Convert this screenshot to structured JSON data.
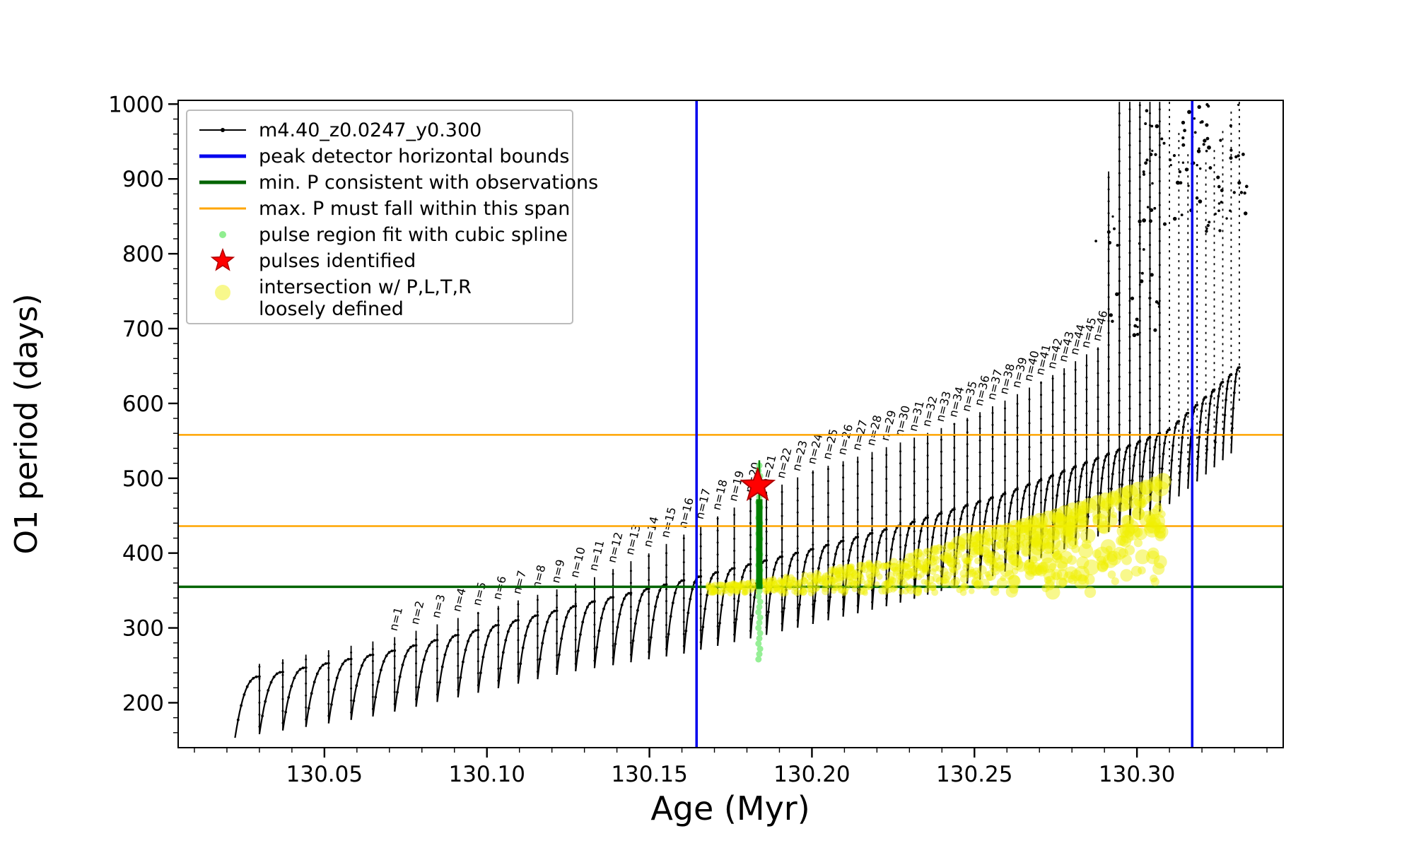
{
  "chart_data": {
    "type": "line",
    "title": "",
    "xlabel": "Age (Myr)",
    "ylabel": "O1 period (days)",
    "xlim": [
      130.005,
      130.345
    ],
    "ylim": [
      140,
      1005
    ],
    "x_major_ticks": [
      130.05,
      130.1,
      130.15,
      130.2,
      130.25,
      130.3
    ],
    "x_tick_labels": [
      "130.05",
      "130.10",
      "130.15",
      "130.20",
      "130.25",
      "130.30"
    ],
    "x_minor_step": 0.01,
    "y_major_ticks": [
      200,
      300,
      400,
      500,
      600,
      700,
      800,
      900,
      1000
    ],
    "y_minor_step": 20,
    "grid": false,
    "series_name": "m4.40_z0.0247_y0.300",
    "series_color": "#000000",
    "pulse_track": {
      "start_x": 130.0225,
      "spike_x": [
        130.03,
        130.0372,
        130.0443,
        130.0513,
        130.0582,
        130.0649,
        130.0716,
        130.0782,
        130.0847,
        130.0911,
        130.0973,
        130.1035,
        130.1096,
        130.1156,
        130.1215,
        130.1273,
        130.1331,
        130.1388,
        130.1443,
        130.1498,
        130.1552,
        130.1606,
        130.1658,
        130.171,
        130.1761,
        130.1811,
        130.186,
        130.1908,
        130.1956,
        130.2003,
        130.205,
        130.2096,
        130.2141,
        130.2185,
        130.2229,
        130.2272,
        130.2315,
        130.2356,
        130.2398,
        130.2438,
        130.2478,
        130.2517,
        130.2556,
        130.2594,
        130.2632,
        130.2669,
        130.2705,
        130.2741,
        130.2776,
        130.2811,
        130.2845,
        130.288,
        130.2913,
        130.2946,
        130.2978,
        130.3009,
        130.304,
        130.307,
        130.31,
        130.3129,
        130.3157,
        130.3185,
        130.3212,
        130.3238,
        130.3264,
        130.329,
        130.3315
      ],
      "labels": [
        "n=1",
        "n=2",
        "n=3",
        "n=4",
        "n=5",
        "n=6",
        "n=7",
        "n=8",
        "n=9",
        "n=10",
        "n=11",
        "n=12",
        "n=13",
        "n=14",
        "n=15",
        "n=16",
        "n=17",
        "n=18",
        "n=19",
        "n=20",
        "n=21",
        "n=22",
        "n=23",
        "n=24",
        "n=25",
        "n=26",
        "n=27",
        "n=28",
        "n=29",
        "n=30",
        "n=31",
        "n=32",
        "n=33",
        "n=34",
        "n=35",
        "n=36",
        "n=37",
        "n=38",
        "n=39",
        "n=40",
        "n=41",
        "n=42",
        "n=43",
        "n=44",
        "n=45",
        "n=46"
      ],
      "label_first_spike_index": 6,
      "dashed_spikes_from_index": 58,
      "plateau_anchors": [
        [
          130.03,
          235
        ],
        [
          130.072,
          270
        ],
        [
          130.1,
          300
        ],
        [
          130.13,
          332
        ],
        [
          130.165,
          368
        ],
        [
          130.2,
          405
        ],
        [
          130.23,
          440
        ],
        [
          130.26,
          480
        ],
        [
          130.29,
          530
        ],
        [
          130.31,
          565
        ],
        [
          130.332,
          650
        ]
      ],
      "trough_anchors": [
        [
          130.0225,
          148
        ],
        [
          130.072,
          182
        ],
        [
          130.1,
          210
        ],
        [
          130.13,
          240
        ],
        [
          130.165,
          265
        ],
        [
          130.2,
          300
        ],
        [
          130.23,
          332
        ],
        [
          130.26,
          370
        ],
        [
          130.29,
          420
        ],
        [
          130.31,
          455
        ],
        [
          130.332,
          535
        ]
      ],
      "spike_top_anchors": [
        [
          130.03,
          252
        ],
        [
          130.072,
          288
        ],
        [
          130.1,
          325
        ],
        [
          130.13,
          362
        ],
        [
          130.15,
          400
        ],
        [
          130.165,
          435
        ],
        [
          130.18,
          470
        ],
        [
          130.2,
          510
        ],
        [
          130.215,
          530
        ],
        [
          130.23,
          552
        ],
        [
          130.245,
          575
        ],
        [
          130.26,
          605
        ],
        [
          130.275,
          640
        ],
        [
          130.288,
          675
        ],
        [
          130.2913,
          910
        ],
        [
          130.2946,
          1003
        ],
        [
          130.31,
          1003
        ],
        [
          130.313,
          960
        ],
        [
          130.3185,
          905
        ],
        [
          130.324,
          940
        ],
        [
          130.329,
          990
        ],
        [
          130.3315,
          1003
        ]
      ]
    },
    "vlines": {
      "label": "peak detector horizontal bounds",
      "color": "#0000ee",
      "x": [
        130.1645,
        130.317
      ],
      "width": 3.5
    },
    "hline_min_p": {
      "label": "min. P consistent with observations",
      "color": "#006400",
      "y": 355,
      "width": 3.5
    },
    "hlines_max_p": {
      "label": "max. P must fall within this span",
      "color": "#ffa500",
      "y": [
        436,
        558
      ],
      "width": 2.5
    },
    "pulse_spline_points": {
      "label": "pulse region fit with cubic spline",
      "color": "#90ee90",
      "x": 130.1838,
      "y_min": 258,
      "y_max": 520,
      "step": 7,
      "radius": 4.5
    },
    "pulse_bar": {
      "color": "#008000",
      "x": 130.1838,
      "y_min": 352,
      "y_max": 472,
      "line_y_max": 524
    },
    "pulses": {
      "label": "pulses identified",
      "color": "#ff0000",
      "edge_color": "#b00000",
      "points": [
        [
          130.1833,
          490
        ]
      ],
      "outer_radius": 24
    },
    "intersection_band": {
      "label_line1": "intersection w/ P,L,T,R",
      "label_line2": "loosely defined",
      "color": "#f0f000",
      "x_min": 130.168,
      "x_max": 130.308,
      "y_base": 352,
      "y_top_end": 492,
      "count": 750,
      "blob_count": 26,
      "seed": 7
    },
    "noise_scatter": {
      "count": 90,
      "x_min": 130.3,
      "x_max": 130.334,
      "y_min": 830,
      "y_max": 1002,
      "seed": 11
    },
    "noise_scatter2": {
      "count": 25,
      "x_min": 130.287,
      "x_max": 130.307,
      "y_min": 690,
      "y_max": 850,
      "seed": 5
    }
  },
  "legend": {
    "items": [
      {
        "key": "series",
        "label": "m4.40_z0.0247_y0.300",
        "type": "line-dot",
        "color": "#000000"
      },
      {
        "key": "vlines",
        "label": "peak detector horizontal bounds",
        "type": "line",
        "color": "#0000ee",
        "width": 5
      },
      {
        "key": "minp",
        "label": "min. P consistent with observations",
        "type": "line",
        "color": "#006400",
        "width": 5
      },
      {
        "key": "maxp",
        "label": "max. P must fall within this span",
        "type": "line",
        "color": "#ffa500",
        "width": 3
      },
      {
        "key": "spline",
        "label": "pulse region fit with cubic spline",
        "type": "dot",
        "color": "#90ee90",
        "r": 5,
        "opacity": 1
      },
      {
        "key": "pulses",
        "label": "pulses identified",
        "type": "star",
        "color": "#ff0000"
      },
      {
        "key": "intersection",
        "label": "intersection w/ P,L,T,R",
        "label2": "loosely defined",
        "type": "dot",
        "color": "#f0f000",
        "r": 11,
        "opacity": 0.45
      }
    ]
  }
}
